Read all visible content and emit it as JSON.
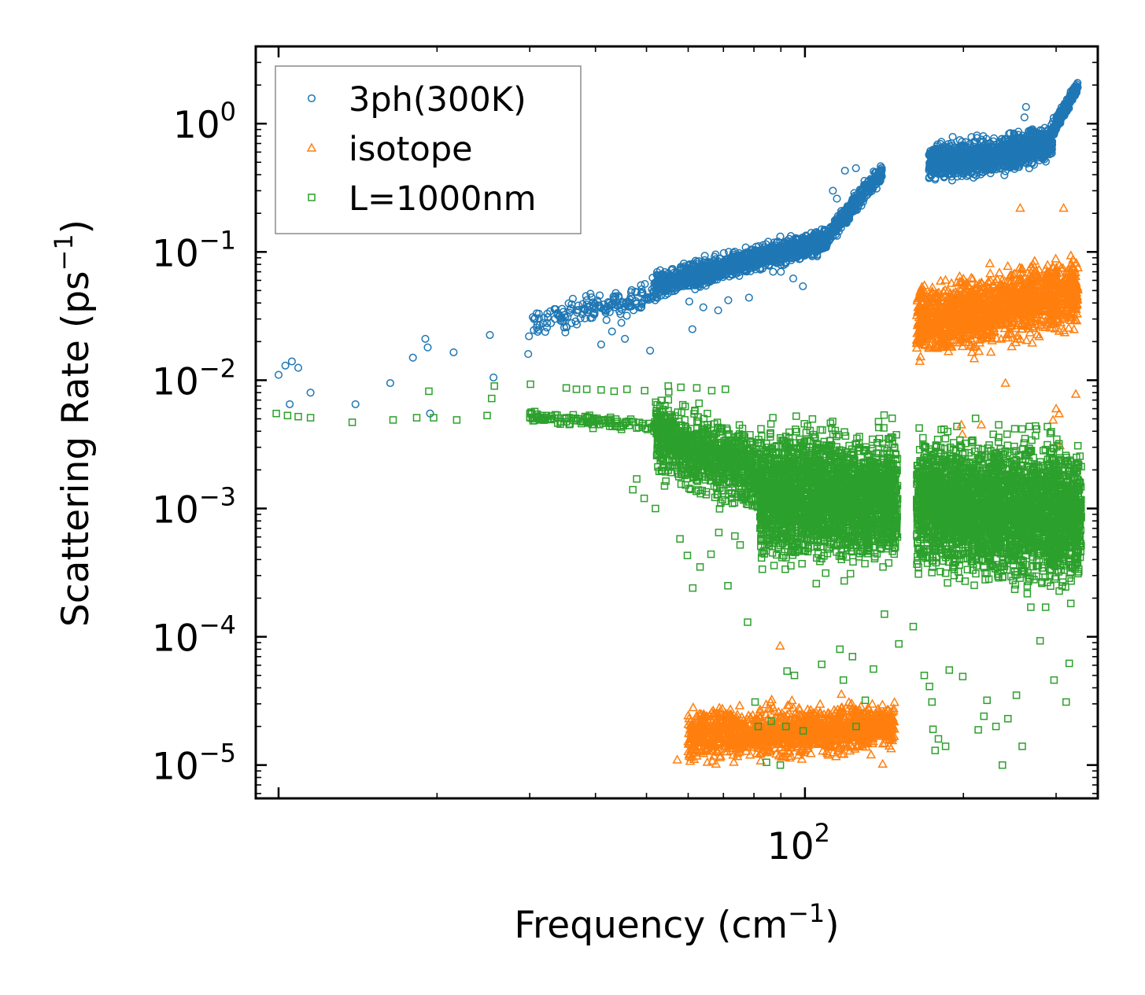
{
  "chart_data": {
    "type": "scatter",
    "xscale": "log",
    "yscale": "log",
    "xlim": [
      9.05,
      360
    ],
    "ylim": [
      5.5e-06,
      4.0
    ],
    "xlabel": "Frequency (cm",
    "xlabel_sup": "−1",
    "xlabel_end": ")",
    "ylabel": "Scattering Rate (ps",
    "ylabel_sup": "−1",
    "ylabel_end": ")",
    "x_major_ticks": [
      {
        "base": "10",
        "exp": "2",
        "value": 100
      }
    ],
    "y_major_ticks": [
      {
        "base": "10",
        "exp": "0",
        "value": 1
      },
      {
        "base": "10",
        "exp": "−1",
        "value": 0.1
      },
      {
        "base": "10",
        "exp": "−2",
        "value": 0.01
      },
      {
        "base": "10",
        "exp": "−3",
        "value": 0.001
      },
      {
        "base": "10",
        "exp": "−4",
        "value": 0.0001
      },
      {
        "base": "10",
        "exp": "−5",
        "value": 1e-05
      }
    ],
    "legend_position": "top-left",
    "series": [
      {
        "name": "3ph(300K)",
        "marker": "circle",
        "color": "#1f77b4",
        "points": [
          [
            10.0,
            0.011
          ],
          [
            10.3,
            0.013
          ],
          [
            10.6,
            0.014
          ],
          [
            10.9,
            0.0125
          ],
          [
            10.5,
            0.0065
          ],
          [
            11.5,
            0.008
          ],
          [
            14,
            0.0065
          ],
          [
            16.3,
            0.0095
          ],
          [
            18,
            0.015
          ],
          [
            19,
            0.021
          ],
          [
            19.2,
            0.018
          ],
          [
            19.4,
            0.0055
          ],
          [
            21.5,
            0.0165
          ],
          [
            25.2,
            0.0225
          ],
          [
            25.6,
            0.0105
          ],
          [
            29.8,
            0.016
          ],
          [
            29.9,
            0.022
          ],
          [
            30.4,
            0.031
          ],
          [
            31,
            0.027
          ],
          [
            32.4,
            0.033
          ],
          [
            33.5,
            0.03
          ],
          [
            34.8,
            0.029
          ],
          [
            35.2,
            0.026
          ],
          [
            36.9,
            0.035
          ],
          [
            38,
            0.036
          ],
          [
            38.5,
            0.042
          ],
          [
            39.1,
            0.038
          ],
          [
            39.6,
            0.033
          ],
          [
            41.5,
            0.039
          ],
          [
            42.5,
            0.04
          ],
          [
            41,
            0.019
          ],
          [
            43,
            0.024
          ],
          [
            44.8,
            0.028
          ],
          [
            45.5,
            0.021
          ],
          [
            47.6,
            0.049
          ],
          [
            48.8,
            0.055
          ],
          [
            49.5,
            0.042
          ],
          [
            50.8,
            0.017
          ],
          [
            56,
            0.055
          ],
          [
            61.1,
            0.025
          ],
          [
            60.3,
            0.041
          ],
          [
            64.1,
            0.037
          ],
          [
            68.4,
            0.035
          ],
          [
            71.5,
            0.042
          ],
          [
            78.3,
            0.044
          ],
          [
            87,
            0.07
          ],
          [
            90,
            0.07
          ],
          [
            95,
            0.062
          ],
          [
            99.1,
            0.054
          ],
          [
            105.4,
            0.095
          ],
          [
            113,
            0.3
          ],
          [
            115,
            0.26
          ],
          [
            119.1,
            0.43
          ],
          [
            125,
            0.45
          ],
          [
            261.2,
            1.12
          ],
          [
            263,
            1.35
          ]
        ],
        "bands": [
          {
            "x": [
              30.5,
              52
            ],
            "center": [
              0.027,
              0.048
            ],
            "spread": 1.28,
            "n": 150
          },
          {
            "x": [
              52,
              110
            ],
            "center": [
              0.055,
              0.125
            ],
            "spread": 1.22,
            "n": 1300
          },
          {
            "x": [
              110,
              140
            ],
            "center": [
              0.13,
              0.42
            ],
            "spread": 1.16,
            "n": 380
          },
          {
            "x": [
              172,
              230
            ],
            "center": [
              0.5,
              0.56
            ],
            "spread": 1.32,
            "n": 800
          },
          {
            "x": [
              230,
              295
            ],
            "center": [
              0.56,
              0.72
            ],
            "spread": 1.32,
            "n": 700
          },
          {
            "x": [
              295,
              330
            ],
            "center": [
              0.9,
              1.95
            ],
            "spread": 1.12,
            "n": 220
          }
        ]
      },
      {
        "name": "isotope",
        "marker": "triangle",
        "color": "#ff7f0e",
        "points": [
          [
            57.2,
            1.1e-05
          ],
          [
            89.7,
            8.5e-05
          ],
          [
            140.5,
            1.02e-05
          ],
          [
            240.4,
            0.0095
          ],
          [
            256.4,
            0.22
          ],
          [
            310,
            0.22
          ],
          [
            305,
            0.0031
          ],
          [
            327,
            0.0078
          ],
          [
            304,
            0.0055
          ],
          [
            300,
            0.006
          ],
          [
            296,
            0.0049
          ],
          [
            216.3,
            0.0045
          ],
          [
            198.2,
            0.0045
          ],
          [
            199.1,
            0.0038
          ]
        ],
        "bands": [
          {
            "x": [
              60,
              148
            ],
            "center": [
              1.7e-05,
              2e-05
            ],
            "spread": 1.5,
            "n": 1400
          },
          {
            "x": [
              163,
              330
            ],
            "center": [
              0.028,
              0.05
            ],
            "spread": 1.8,
            "n": 1600
          }
        ]
      },
      {
        "name": "L=1000nm",
        "marker": "square",
        "color": "#2ca02c",
        "points": [
          [
            9.9,
            0.0055
          ],
          [
            10.4,
            0.0053
          ],
          [
            10.9,
            0.0052
          ],
          [
            11.5,
            0.0051
          ],
          [
            13.8,
            0.0047
          ],
          [
            16.5,
            0.0049
          ],
          [
            18.3,
            0.0051
          ],
          [
            19.7,
            0.0051
          ],
          [
            21.8,
            0.0049
          ],
          [
            24.9,
            0.0053
          ],
          [
            19.3,
            0.0082
          ],
          [
            25.7,
            0.009
          ],
          [
            25.4,
            0.0072
          ],
          [
            30.1,
            0.0093
          ],
          [
            35.2,
            0.0087
          ],
          [
            36.8,
            0.0085
          ],
          [
            38.5,
            0.0085
          ],
          [
            41,
            0.0084
          ],
          [
            43.4,
            0.0082
          ],
          [
            45.9,
            0.0085
          ],
          [
            49.6,
            0.0083
          ],
          [
            55,
            0.009
          ],
          [
            58.1,
            0.0088
          ],
          [
            62.3,
            0.0087
          ],
          [
            66.5,
            0.0083
          ],
          [
            70.6,
            0.0085
          ],
          [
            47.9,
            0.0017
          ],
          [
            47.1,
            0.0014
          ],
          [
            49.5,
            0.0012
          ],
          [
            52,
            0.001
          ],
          [
            54.1,
            0.0015
          ],
          [
            57.9,
            0.00058
          ],
          [
            59.8,
            0.00043
          ],
          [
            61.2,
            0.00024
          ],
          [
            63.2,
            0.00035
          ],
          [
            66.3,
            0.00044
          ],
          [
            68.6,
            0.00065
          ],
          [
            69.2,
            0.0011
          ],
          [
            71.4,
            0.00025
          ],
          [
            73.6,
            0.00061
          ],
          [
            75.3,
            0.00052
          ],
          [
            77.8,
            0.00013
          ],
          [
            80.4,
            3.1e-05
          ],
          [
            81.5,
            2e-05
          ],
          [
            84.5,
            1.05e-05
          ],
          [
            86.3,
            2.2e-05
          ],
          [
            89.8,
            1e-05
          ],
          [
            92,
            2e-05
          ],
          [
            92.5,
            5.4e-05
          ],
          [
            95.5,
            5e-05
          ],
          [
            99.2,
            1.85e-05
          ],
          [
            107.6,
            6.1e-05
          ],
          [
            116.5,
            8e-05
          ],
          [
            118.3,
            4.6e-05
          ],
          [
            123.1,
            7e-05
          ],
          [
            125.1,
            2e-05
          ],
          [
            130.2,
            3.2e-05
          ],
          [
            134.9,
            5.6e-05
          ],
          [
            141.6,
            0.00015
          ],
          [
            150.8,
            8.8e-05
          ],
          [
            160.6,
            0.00012
          ],
          [
            168.5,
            5e-05
          ],
          [
            172.4,
            4.1e-05
          ],
          [
            174.3,
            3.1e-05
          ],
          [
            175.1,
            1.9e-05
          ],
          [
            176.7,
            1.3e-05
          ],
          [
            179.3,
            1.6e-05
          ],
          [
            185,
            1.4e-05
          ],
          [
            188,
            5.5e-05
          ],
          [
            199.4,
            4.9e-05
          ],
          [
            213.4,
            1.88e-05
          ],
          [
            218.8,
            2.4e-05
          ],
          [
            221.7,
            3.2e-05
          ],
          [
            230.6,
            2e-05
          ],
          [
            237.2,
            1e-05
          ],
          [
            243,
            2.3e-05
          ],
          [
            252.2,
            3.5e-05
          ],
          [
            258.7,
            1.4e-05
          ],
          [
            268.6,
            0.00017
          ],
          [
            279.7,
            9.3e-05
          ],
          [
            286.5,
            0.00017
          ],
          [
            297.3,
            4.6e-05
          ],
          [
            313.5,
            3.1e-05
          ],
          [
            317.7,
            6.2e-05
          ],
          [
            326.3,
            0.0006
          ],
          [
            230,
            0.0027
          ],
          [
            240,
            0.0028
          ],
          [
            245.2,
            0.0026
          ]
        ],
        "bands": [
          {
            "x": [
              30,
              52
            ],
            "center": [
              0.0052,
              0.0044
            ],
            "spread": 1.1,
            "n": 120
          },
          {
            "x": [
              52,
              82
            ],
            "center": [
              0.0038,
              0.0018
            ],
            "spread": 1.9,
            "n": 900
          },
          {
            "x": [
              82,
              150
            ],
            "center": [
              0.0013,
              0.0012
            ],
            "spread": 2.7,
            "n": 2600
          },
          {
            "x": [
              163,
              335
            ],
            "center": [
              0.0011,
              0.0009
            ],
            "spread": 2.9,
            "n": 3200
          }
        ]
      }
    ]
  }
}
